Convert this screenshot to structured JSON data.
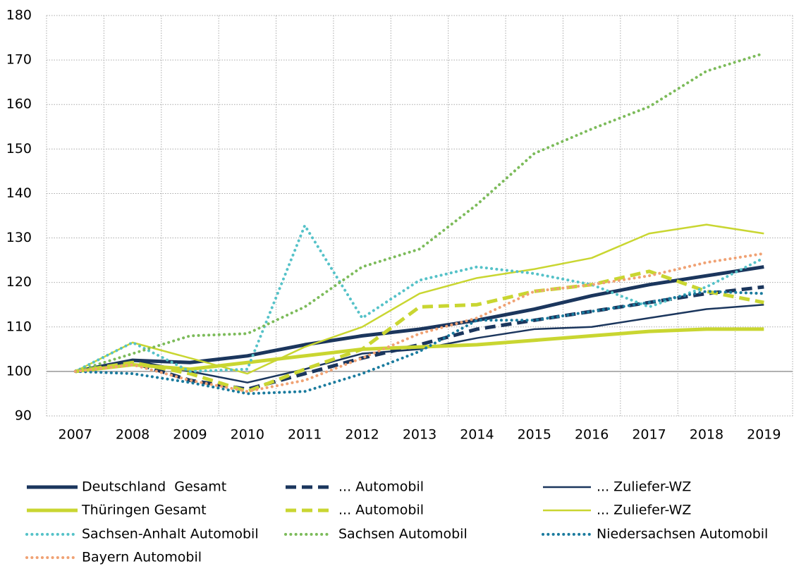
{
  "chart_data": {
    "type": "line",
    "categories": [
      "2007",
      "2008",
      "2009",
      "2010",
      "2011",
      "2012",
      "2013",
      "2014",
      "2015",
      "2016",
      "2017",
      "2018",
      "2019"
    ],
    "ylim": [
      90,
      180
    ],
    "yticks": [
      90,
      100,
      110,
      120,
      130,
      140,
      150,
      160,
      170,
      180
    ],
    "grid": true,
    "series": [
      {
        "name": "Deutschland  Gesamt",
        "color": "#1b365d",
        "style": "solid",
        "width": 5,
        "values": [
          100,
          102.5,
          102,
          103.5,
          106,
          108,
          109.5,
          111.5,
          114,
          117,
          119.5,
          121.5,
          123.5
        ]
      },
      {
        "name": "... Automobil",
        "color": "#1b365d",
        "style": "dash",
        "width": 5,
        "values": [
          100,
          102,
          98,
          96,
          99.5,
          103,
          106,
          109.5,
          111.5,
          113.5,
          115.5,
          117.5,
          119
        ]
      },
      {
        "name": "... Zuliefer-WZ",
        "color": "#1b365d",
        "style": "solid",
        "width": 2.5,
        "values": [
          100,
          102.5,
          100,
          97.5,
          100.5,
          104,
          105,
          107.5,
          109.5,
          110,
          112,
          114,
          115
        ]
      },
      {
        "name": "Thüringen Gesamt",
        "color": "#c9d631",
        "style": "solid",
        "width": 5,
        "values": [
          100,
          101.5,
          100.5,
          102,
          103.5,
          105,
          105.5,
          106,
          107,
          108,
          109,
          109.5,
          109.5
        ]
      },
      {
        "name": "... Automobil",
        "color": "#c9d631",
        "style": "dash",
        "width": 5,
        "values": [
          100,
          102,
          99.5,
          95.5,
          100.5,
          105,
          114.5,
          115,
          118,
          119.5,
          122.5,
          118,
          115.5
        ]
      },
      {
        "name": "... Zuliefer-WZ",
        "color": "#c9d631",
        "style": "solid",
        "width": 2.5,
        "values": [
          100,
          106.5,
          103,
          99.5,
          105.5,
          110,
          117.5,
          121,
          123,
          125.5,
          131,
          133,
          131
        ]
      },
      {
        "name": "Sachsen-Anhalt Automobil",
        "color": "#55c2c8",
        "style": "dot",
        "width": 4,
        "values": [
          100,
          106.5,
          100,
          100.5,
          132.8,
          112,
          120.5,
          123.5,
          122,
          119.5,
          114.5,
          119,
          125.5
        ]
      },
      {
        "name": "Sachsen Automobil",
        "color": "#7cbb5a",
        "style": "dot",
        "width": 4,
        "values": [
          100,
          104,
          108,
          108.5,
          114.5,
          123.5,
          127.5,
          137.5,
          149,
          154.5,
          159.5,
          167.5,
          171.5
        ]
      },
      {
        "name": "Niedersachsen Automobil",
        "color": "#1a7b9e",
        "style": "dot",
        "width": 4,
        "values": [
          100,
          99.5,
          97.5,
          95,
          95.5,
          99.5,
          104.5,
          111.5,
          111.5,
          113.5,
          115.5,
          118,
          117.5
        ]
      },
      {
        "name": "Bayern Automobil",
        "color": "#f0a274",
        "style": "dot",
        "width": 4,
        "values": [
          100,
          101.5,
          98,
          95.5,
          98,
          103,
          108.5,
          112,
          118,
          119.5,
          121.5,
          124.5,
          126.5
        ]
      }
    ]
  }
}
